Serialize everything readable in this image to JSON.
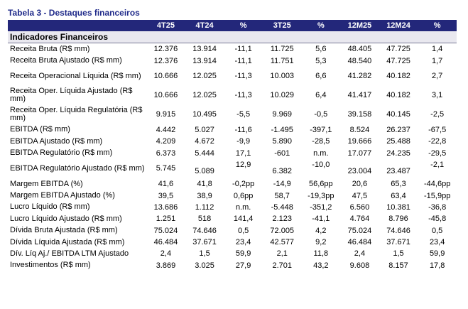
{
  "title": "Tabela 3 - Destaques financeiros",
  "headers": [
    "",
    "4T25",
    "4T24",
    "%",
    "3T25",
    "%",
    "12M25",
    "12M24",
    "%"
  ],
  "section": "Indicadores Financeiros",
  "rows": [
    {
      "label": "Receita Bruta (R$ mm)",
      "values": [
        "12.376",
        "13.914",
        "-11,1",
        "11.725",
        "5,6",
        "48.405",
        "47.725",
        "1,4"
      ]
    },
    {
      "label": "Receita Bruta Ajustado (R$ mm)",
      "values": [
        "12.376",
        "13.914",
        "-11,1",
        "11.751",
        "5,3",
        "48.540",
        "47.725",
        "1,7"
      ]
    },
    {
      "label": "Receita Operacional Líquida (R$ mm)",
      "values": [
        "10.666",
        "12.025",
        "-11,3",
        "10.003",
        "6,6",
        "41.282",
        "40.182",
        "2,7"
      ]
    },
    {
      "label": "Receita Oper. Líquida Ajustado (R$ mm)",
      "values": [
        "10.666",
        "12.025",
        "-11,3",
        "10.029",
        "6,4",
        "41.417",
        "40.182",
        "3,1"
      ]
    },
    {
      "label": "Receita Oper. Líquida Regulatória (R$ mm)",
      "values": [
        "9.915",
        "10.495",
        "-5,5",
        "9.969",
        "-0,5",
        "39.158",
        "40.145",
        "-2,5"
      ]
    },
    {
      "label": "EBITDA (R$ mm)",
      "values": [
        "4.442",
        "5.027",
        "-11,6",
        "-1.495",
        "-397,1",
        "8.524",
        "26.237",
        "-67,5"
      ]
    },
    {
      "label": "EBITDA Ajustado (R$ mm)",
      "values": [
        "4.209",
        "4.672",
        "-9,9",
        "5.890",
        "-28,5",
        "19.666",
        "25.488",
        "-22,8"
      ]
    },
    {
      "label": "EBITDA Regulatório (R$ mm)",
      "values": [
        "6.373",
        "5.444",
        "17,1",
        "-601",
        "n.m.",
        "17.077",
        "24.235",
        "-29,5"
      ]
    },
    {
      "label": "EBITDA Regulatório Ajustado (R$ mm)",
      "values": [
        "5.745",
        "5.089",
        "12,9",
        "6.382",
        "-10,0",
        "23.004",
        "23.487",
        "-2,1"
      ]
    },
    {
      "label": "Margem EBITDA (%)",
      "values": [
        "41,6",
        "41,8",
        "-0,2pp",
        "-14,9",
        "56,6pp",
        "20,6",
        "65,3",
        "-44,6pp"
      ]
    },
    {
      "label": "Margem EBITDA Ajustado (%)",
      "values": [
        "39,5",
        "38,9",
        "0,6pp",
        "58,7",
        "-19,3pp",
        "47,5",
        "63,4",
        "-15,9pp"
      ]
    },
    {
      "label": "Lucro Líquido (R$ mm)",
      "values": [
        "13.686",
        "1.112",
        "n.m.",
        "-5.448",
        "-351,2",
        "6.560",
        "10.381",
        "-36,8"
      ]
    },
    {
      "label": "Lucro Líquido Ajustado (R$ mm)",
      "values": [
        "1.251",
        "518",
        "141,4",
        "2.123",
        "-41,1",
        "4.764",
        "8.796",
        "-45,8"
      ]
    },
    {
      "label": "Dívida Bruta Ajustada (R$ mm)",
      "values": [
        "75.024",
        "74.646",
        "0,5",
        "72.005",
        "4,2",
        "75.024",
        "74.646",
        "0,5"
      ]
    },
    {
      "label": "Dívida Líquida Ajustada (R$ mm)",
      "values": [
        "46.484",
        "37.671",
        "23,4",
        "42.577",
        "9,2",
        "46.484",
        "37.671",
        "23,4"
      ]
    },
    {
      "label": "Dív. Líq Aj./ EBITDA LTM Ajustado",
      "values": [
        "2,4",
        "1,5",
        "59,9",
        "2,1",
        "11,8",
        "2,4",
        "1,5",
        "59,9"
      ]
    },
    {
      "label": "Investimentos (R$ mm)",
      "values": [
        "3.869",
        "3.025",
        "27,9",
        "2.701",
        "43,2",
        "9.608",
        "8.157",
        "17,8"
      ]
    }
  ]
}
